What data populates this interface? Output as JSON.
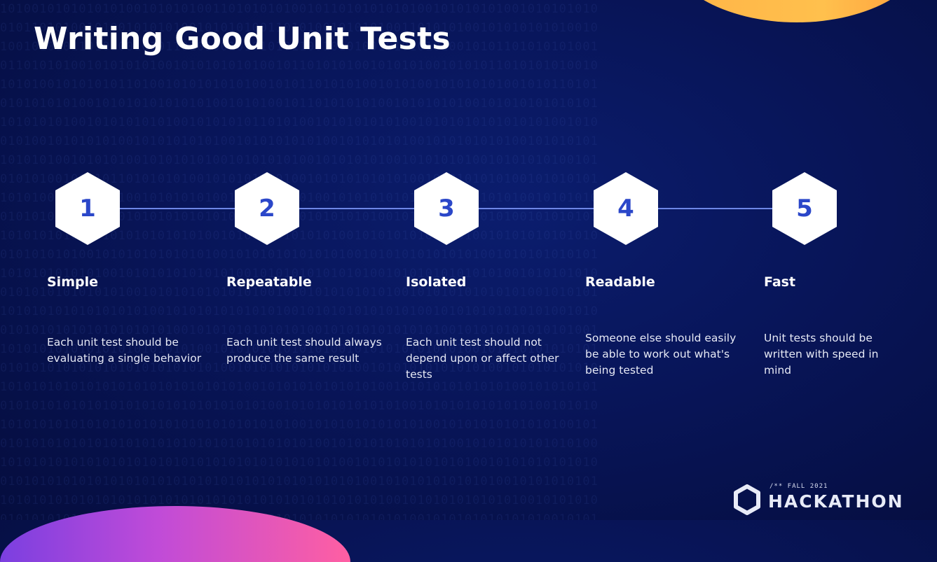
{
  "slide": {
    "title": "Writing Good Unit Tests"
  },
  "steps": [
    {
      "number": "1",
      "title": "Simple",
      "description": "Each unit test should be evaluating a single behavior"
    },
    {
      "number": "2",
      "title": "Repeatable",
      "description": "Each unit test should always produce the same result"
    },
    {
      "number": "3",
      "title": "Isolated",
      "description": "Each unit test should not depend upon or affect other tests"
    },
    {
      "number": "4",
      "title": "Readable",
      "description": "Someone else should easily be able to work out what's being tested"
    },
    {
      "number": "5",
      "title": "Fast",
      "description": "Unit tests should be written with speed in mind"
    }
  ],
  "branding": {
    "subtitle": "/** FALL 2021",
    "name": "HACKATHON",
    "icon": "hexagon-logo-icon"
  },
  "colors": {
    "background": "#081559",
    "accent_number": "#2b47c9",
    "timeline": "#6d86e6",
    "blob_top": "#ffb347",
    "blob_bottom": "#c04bd8"
  }
}
